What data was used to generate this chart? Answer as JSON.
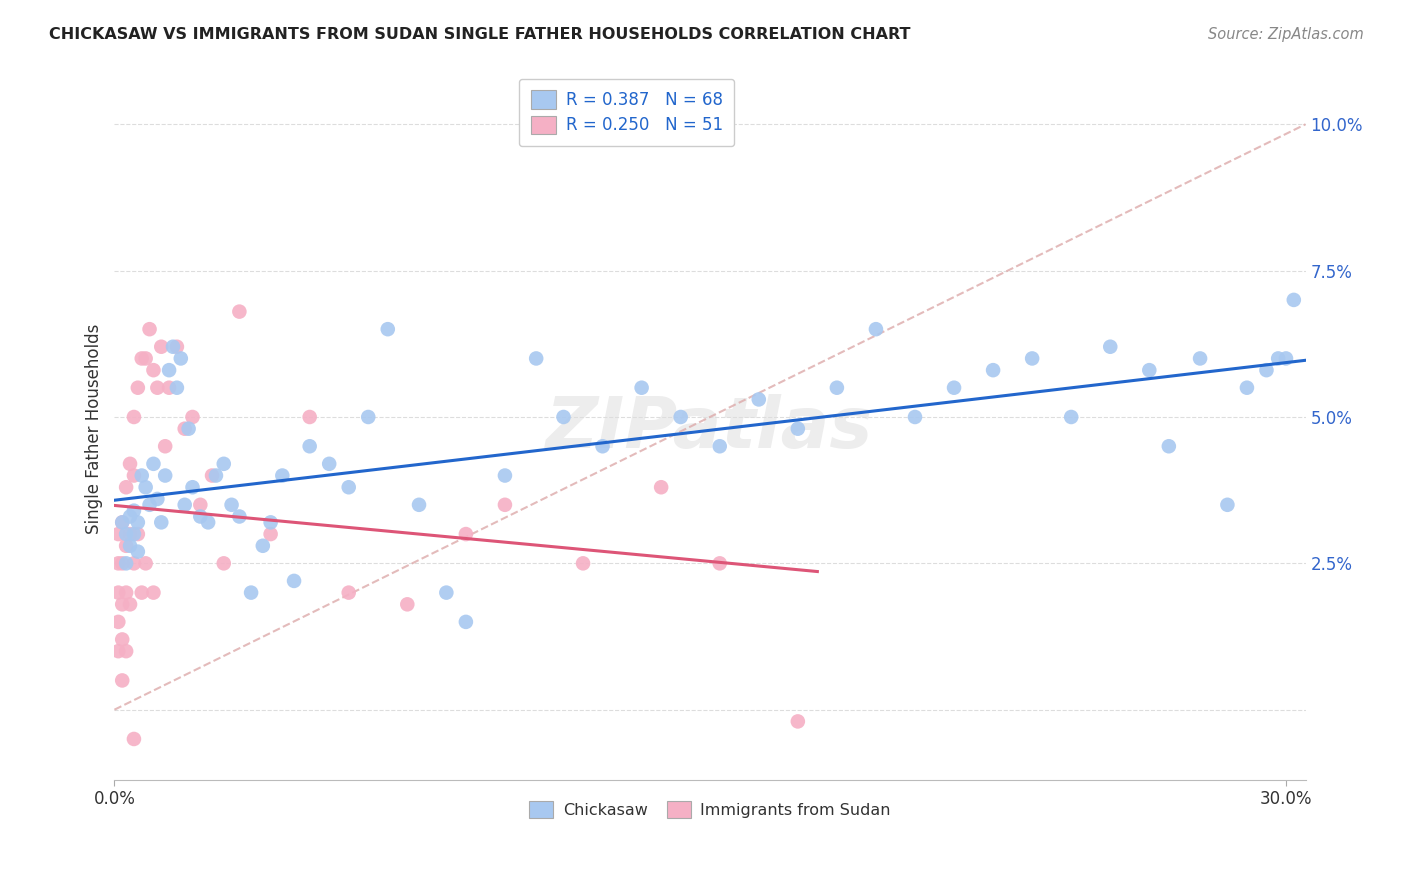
{
  "title": "CHICKASAW VS IMMIGRANTS FROM SUDAN SINGLE FATHER HOUSEHOLDS CORRELATION CHART",
  "source": "Source: ZipAtlas.com",
  "ylabel": "Single Father Households",
  "xlim": [
    0.0,
    0.305
  ],
  "ylim": [
    -0.012,
    0.108
  ],
  "ytick_vals": [
    0.0,
    0.025,
    0.05,
    0.075,
    0.1
  ],
  "ytick_labels": [
    "",
    "2.5%",
    "5.0%",
    "7.5%",
    "10.0%"
  ],
  "xtick_vals": [
    0.0,
    0.3
  ],
  "xtick_labels": [
    "0.0%",
    "30.0%"
  ],
  "chickasaw_R": 0.387,
  "chickasaw_N": 68,
  "sudan_R": 0.25,
  "sudan_N": 51,
  "chickasaw_color": "#A8C8F0",
  "sudan_color": "#F5B0C5",
  "trend_chickasaw_color": "#2266CC",
  "trend_sudan_color": "#DD5577",
  "trend_dashed_color": "#DDAAAA",
  "background_color": "#FFFFFF",
  "grid_color": "#DDDDDD",
  "legend_text_color": "#2266CC",
  "watermark": "ZIPatlas",
  "chickasaw_x": [
    0.002,
    0.003,
    0.003,
    0.004,
    0.004,
    0.005,
    0.005,
    0.006,
    0.006,
    0.007,
    0.008,
    0.009,
    0.01,
    0.011,
    0.012,
    0.013,
    0.014,
    0.015,
    0.016,
    0.017,
    0.018,
    0.019,
    0.02,
    0.022,
    0.024,
    0.026,
    0.028,
    0.03,
    0.032,
    0.035,
    0.038,
    0.04,
    0.043,
    0.046,
    0.05,
    0.055,
    0.06,
    0.065,
    0.07,
    0.078,
    0.085,
    0.09,
    0.1,
    0.108,
    0.115,
    0.125,
    0.135,
    0.145,
    0.155,
    0.165,
    0.175,
    0.185,
    0.195,
    0.205,
    0.215,
    0.225,
    0.235,
    0.245,
    0.255,
    0.265,
    0.27,
    0.278,
    0.285,
    0.29,
    0.295,
    0.298,
    0.3,
    0.302
  ],
  "chickasaw_y": [
    0.032,
    0.03,
    0.025,
    0.028,
    0.033,
    0.034,
    0.03,
    0.032,
    0.027,
    0.04,
    0.038,
    0.035,
    0.042,
    0.036,
    0.032,
    0.04,
    0.058,
    0.062,
    0.055,
    0.06,
    0.035,
    0.048,
    0.038,
    0.033,
    0.032,
    0.04,
    0.042,
    0.035,
    0.033,
    0.02,
    0.028,
    0.032,
    0.04,
    0.022,
    0.045,
    0.042,
    0.038,
    0.05,
    0.065,
    0.035,
    0.02,
    0.015,
    0.04,
    0.06,
    0.05,
    0.045,
    0.055,
    0.05,
    0.045,
    0.053,
    0.048,
    0.055,
    0.065,
    0.05,
    0.055,
    0.058,
    0.06,
    0.05,
    0.062,
    0.058,
    0.045,
    0.06,
    0.035,
    0.055,
    0.058,
    0.06,
    0.06,
    0.07
  ],
  "sudan_x": [
    0.001,
    0.001,
    0.001,
    0.001,
    0.001,
    0.002,
    0.002,
    0.002,
    0.002,
    0.002,
    0.003,
    0.003,
    0.003,
    0.003,
    0.004,
    0.004,
    0.004,
    0.005,
    0.005,
    0.005,
    0.005,
    0.006,
    0.006,
    0.007,
    0.007,
    0.008,
    0.008,
    0.009,
    0.01,
    0.01,
    0.011,
    0.012,
    0.013,
    0.014,
    0.016,
    0.018,
    0.02,
    0.022,
    0.025,
    0.028,
    0.032,
    0.04,
    0.05,
    0.06,
    0.075,
    0.09,
    0.1,
    0.12,
    0.14,
    0.155,
    0.175
  ],
  "sudan_y": [
    0.03,
    0.025,
    0.02,
    0.015,
    0.01,
    0.032,
    0.025,
    0.018,
    0.012,
    0.005,
    0.038,
    0.028,
    0.02,
    0.01,
    0.042,
    0.03,
    0.018,
    0.05,
    0.04,
    0.025,
    -0.005,
    0.055,
    0.03,
    0.06,
    0.02,
    0.06,
    0.025,
    0.065,
    0.058,
    0.02,
    0.055,
    0.062,
    0.045,
    0.055,
    0.062,
    0.048,
    0.05,
    0.035,
    0.04,
    0.025,
    0.068,
    0.03,
    0.05,
    0.02,
    0.018,
    0.03,
    0.035,
    0.025,
    0.038,
    0.025,
    -0.002
  ]
}
